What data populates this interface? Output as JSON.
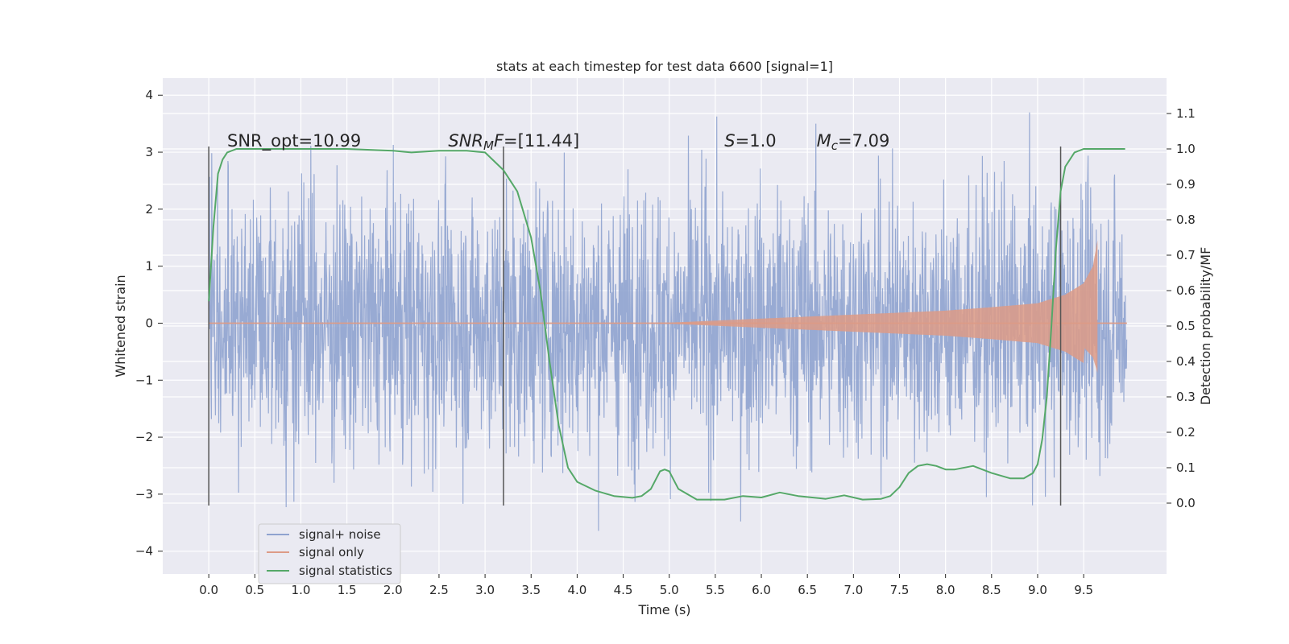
{
  "chart_data": {
    "type": "line",
    "title": "stats at each timestep for test data 6600 [signal=1]",
    "xlabel": "Time (s)",
    "ylabel": "Whitened strain",
    "y2label": "Detection probability/MF",
    "xlim": [
      -0.5,
      10.4
    ],
    "ylim": [
      -4.4,
      4.3
    ],
    "y2lim": [
      -0.2,
      1.2
    ],
    "x_ticks": [
      "0.0",
      "0.5",
      "1.0",
      "1.5",
      "2.0",
      "2.5",
      "3.0",
      "3.5",
      "4.0",
      "4.5",
      "5.0",
      "5.5",
      "6.0",
      "6.5",
      "7.0",
      "7.5",
      "8.0",
      "8.5",
      "9.0",
      "9.5"
    ],
    "y_ticks": [
      "4",
      "3",
      "2",
      "1",
      "0",
      "−1",
      "−2",
      "−3",
      "−4"
    ],
    "y2_ticks": [
      "1.1",
      "1.0",
      "0.9",
      "0.8",
      "0.7",
      "0.6",
      "0.5",
      "0.4",
      "0.3",
      "0.2",
      "0.1",
      "0.0"
    ],
    "grid": true,
    "legend_placement": "lower-left",
    "annotations": [
      {
        "x": 0.2,
        "y": 3.1,
        "parts": [
          {
            "text": "SNR_opt=10.99"
          }
        ]
      },
      {
        "x": 2.6,
        "y": 3.1,
        "parts": [
          {
            "text": "SNR",
            "style": "italic"
          },
          {
            "text": "M",
            "style": "italic-sub"
          },
          {
            "text": "F",
            "style": "italic"
          },
          {
            "text": "=[11.44]"
          }
        ]
      },
      {
        "x": 5.6,
        "y": 3.1,
        "parts": [
          {
            "text": "S",
            "style": "italic"
          },
          {
            "text": "=1.0"
          }
        ]
      },
      {
        "x": 6.6,
        "y": 3.1,
        "parts": [
          {
            "text": "M",
            "style": "italic"
          },
          {
            "text": "c",
            "style": "italic-sub"
          },
          {
            "text": "=7.09"
          }
        ]
      }
    ],
    "vlines": [
      {
        "x": 0.0,
        "y_range": [
          -3.2,
          3.1
        ]
      },
      {
        "x": 3.2,
        "y_range": [
          -3.2,
          3.1
        ]
      },
      {
        "x": 9.25,
        "y_range": [
          -3.2,
          3.1
        ]
      }
    ],
    "series": [
      {
        "name": "signal+ noise",
        "color": "#8fa3cf",
        "axis": "left",
        "kind": "noise",
        "x_range": [
          0.0,
          9.97
        ],
        "typical_envelope": [
          -2.3,
          2.3
        ],
        "max": 3.95,
        "min": -3.9
      },
      {
        "name": "signal only",
        "color": "#dd9b86",
        "axis": "left",
        "kind": "chirp",
        "x_range": [
          0.0,
          9.97
        ],
        "merger_time": 9.65,
        "envelope": [
          [
            0.0,
            0.0
          ],
          [
            5.0,
            0.01
          ],
          [
            6.0,
            0.08
          ],
          [
            7.0,
            0.15
          ],
          [
            8.0,
            0.22
          ],
          [
            8.5,
            0.28
          ],
          [
            9.0,
            0.35
          ],
          [
            9.3,
            0.5
          ],
          [
            9.5,
            0.7
          ],
          [
            9.6,
            1.0
          ],
          [
            9.65,
            1.45
          ]
        ]
      },
      {
        "name": "signal statistics",
        "color": "#55a868",
        "axis": "right",
        "kind": "line",
        "x": [
          0.0,
          0.05,
          0.1,
          0.15,
          0.2,
          0.3,
          0.5,
          1.0,
          1.5,
          2.0,
          2.2,
          2.5,
          2.8,
          3.0,
          3.2,
          3.35,
          3.5,
          3.6,
          3.7,
          3.8,
          3.9,
          4.0,
          4.2,
          4.4,
          4.6,
          4.7,
          4.8,
          4.9,
          4.95,
          5.0,
          5.1,
          5.3,
          5.6,
          5.8,
          6.0,
          6.2,
          6.4,
          6.7,
          6.9,
          7.1,
          7.3,
          7.4,
          7.5,
          7.6,
          7.7,
          7.8,
          7.9,
          8.0,
          8.1,
          8.3,
          8.5,
          8.7,
          8.85,
          8.95,
          9.0,
          9.05,
          9.1,
          9.15,
          9.2,
          9.25,
          9.3,
          9.4,
          9.5,
          9.6,
          9.8,
          9.95
        ],
        "y": [
          0.57,
          0.78,
          0.93,
          0.97,
          0.99,
          1.0,
          1.0,
          1.0,
          1.0,
          0.995,
          0.99,
          0.995,
          0.995,
          0.99,
          0.94,
          0.88,
          0.75,
          0.6,
          0.4,
          0.22,
          0.1,
          0.06,
          0.035,
          0.02,
          0.015,
          0.02,
          0.04,
          0.09,
          0.095,
          0.09,
          0.04,
          0.01,
          0.01,
          0.02,
          0.016,
          0.03,
          0.02,
          0.012,
          0.022,
          0.01,
          0.012,
          0.02,
          0.045,
          0.085,
          0.105,
          0.11,
          0.105,
          0.095,
          0.095,
          0.105,
          0.085,
          0.07,
          0.07,
          0.085,
          0.11,
          0.18,
          0.3,
          0.5,
          0.72,
          0.88,
          0.95,
          0.99,
          1.0,
          1.0,
          1.0,
          1.0
        ]
      }
    ]
  }
}
